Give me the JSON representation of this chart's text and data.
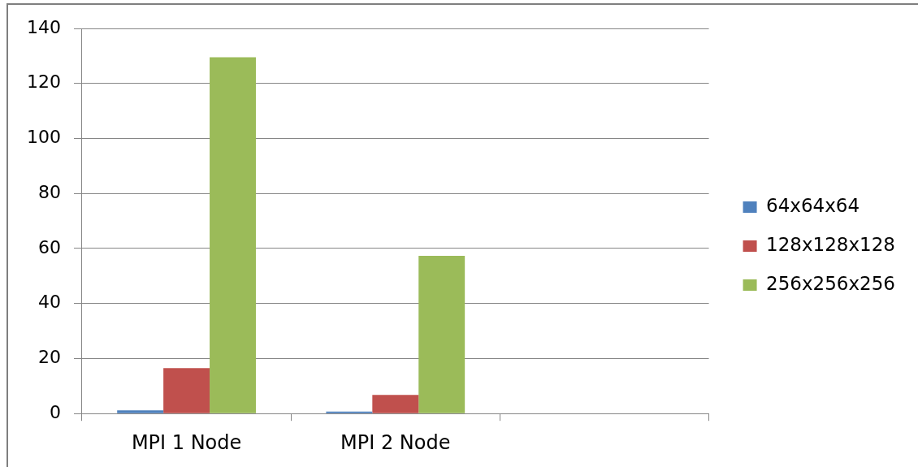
{
  "chart_data": {
    "type": "bar",
    "categories": [
      "MPI 1 Node",
      "MPI 2 Node",
      null
    ],
    "series": [
      {
        "name": "64x64x64",
        "color": "#4f81bd",
        "values": [
          1.2,
          0.7,
          null
        ]
      },
      {
        "name": "128x128x128",
        "color": "#c0504d",
        "values": [
          16.5,
          6.8,
          null
        ]
      },
      {
        "name": "256x256x256",
        "color": "#9bbb59",
        "values": [
          129.5,
          57.3,
          null
        ]
      }
    ],
    "ylim": [
      0,
      140
    ],
    "yticks": [
      0,
      20,
      40,
      60,
      80,
      100,
      120,
      140
    ],
    "grid": "y",
    "legend": "right"
  }
}
